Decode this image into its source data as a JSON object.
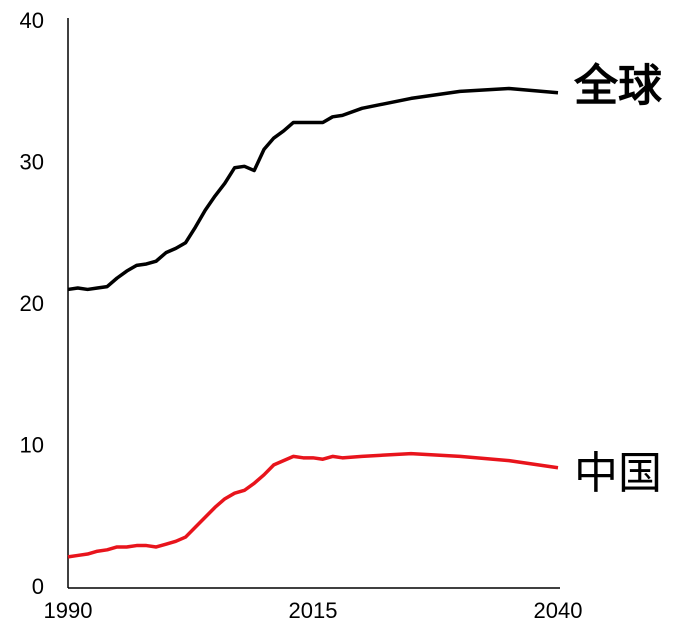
{
  "chart_data": {
    "type": "line",
    "x": [
      1990,
      1991,
      1992,
      1993,
      1994,
      1995,
      1996,
      1997,
      1998,
      1999,
      2000,
      2001,
      2002,
      2003,
      2004,
      2005,
      2006,
      2007,
      2008,
      2009,
      2010,
      2011,
      2012,
      2013,
      2014,
      2015,
      2016,
      2017,
      2018,
      2020,
      2025,
      2030,
      2035,
      2040
    ],
    "series": [
      {
        "name": "全球",
        "color": "#000000",
        "values": [
          21.1,
          21.2,
          21.1,
          21.2,
          21.3,
          21.9,
          22.4,
          22.8,
          22.9,
          23.1,
          23.7,
          24.0,
          24.4,
          25.5,
          26.7,
          27.7,
          28.6,
          29.7,
          29.8,
          29.5,
          31.0,
          31.8,
          32.3,
          32.9,
          32.9,
          32.9,
          32.9,
          33.3,
          33.4,
          33.9,
          34.6,
          35.1,
          35.3,
          35.0
        ]
      },
      {
        "name": "中国",
        "color": "#e8141c",
        "values": [
          2.2,
          2.3,
          2.4,
          2.6,
          2.7,
          2.9,
          2.9,
          3.0,
          3.0,
          2.9,
          3.1,
          3.3,
          3.6,
          4.3,
          5.0,
          5.7,
          6.3,
          6.7,
          6.9,
          7.4,
          8.0,
          8.7,
          9.0,
          9.3,
          9.2,
          9.2,
          9.1,
          9.3,
          9.2,
          9.3,
          9.5,
          9.3,
          9.0,
          8.5
        ]
      }
    ],
    "xlim": [
      1990,
      2040
    ],
    "xticks": [
      1990,
      2015,
      2040
    ],
    "ylim": [
      0,
      40
    ],
    "yticks": [
      0,
      10,
      20,
      30,
      40
    ]
  }
}
